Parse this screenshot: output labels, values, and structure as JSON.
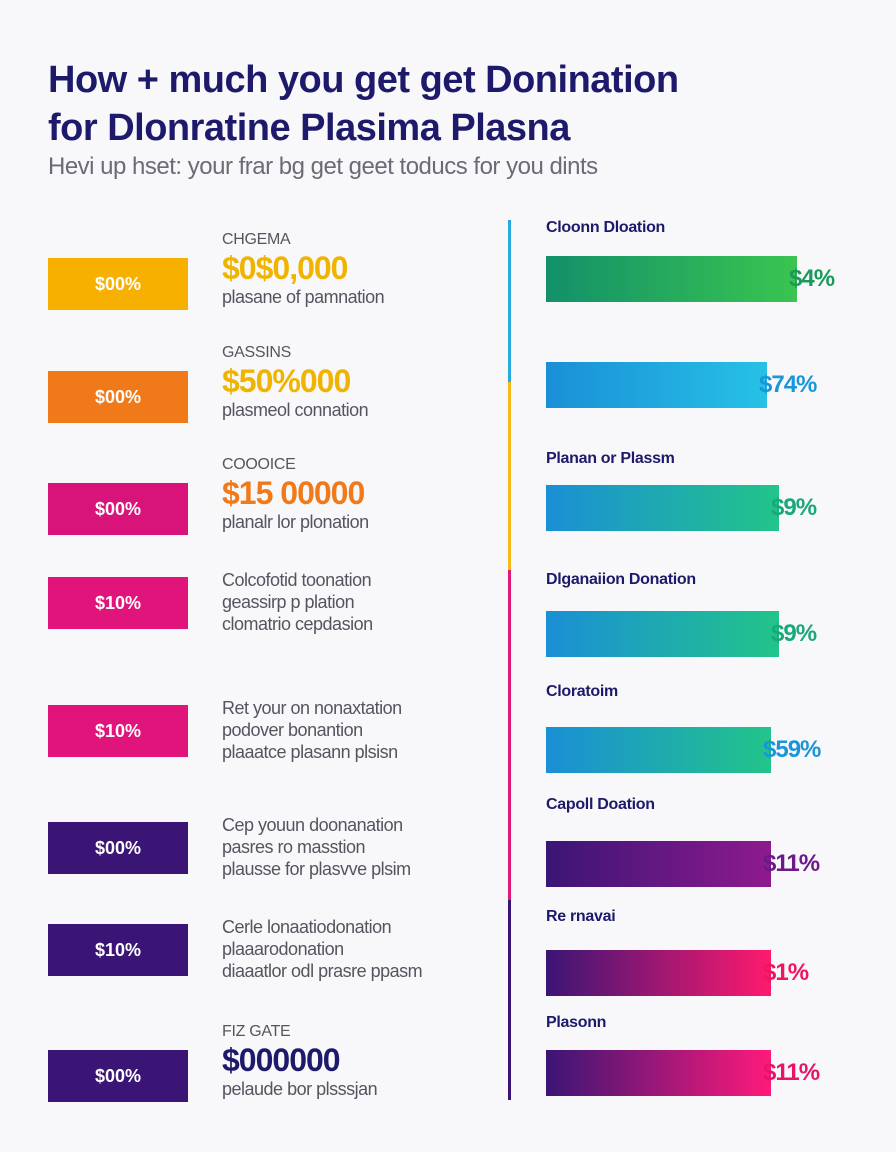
{
  "title_lines": [
    "How + much you get get Donination",
    "for Dlonratine Plasima Plasna"
  ],
  "subtitle": "Hevi up hset: your frar bg get geet toducs for you dints",
  "left_items": [
    {
      "badge": "$00%",
      "badge_color": "#f8b000",
      "category": "CHGEMA",
      "amount": "$0$0,000",
      "amount_color": "#f0b400",
      "lines": [
        "plasane of pamnation"
      ]
    },
    {
      "badge": "$00%",
      "badge_color": "#f07a1a",
      "category": "GASSINS",
      "amount": "$50%000",
      "amount_color": "#f0b400",
      "lines": [
        "plasmeol connation"
      ]
    },
    {
      "badge": "$00%",
      "badge_color": "#d8147a",
      "category": "COOOICE",
      "amount": "$15 00000",
      "amount_color": "#f07a1a",
      "lines": [
        "planalr lor plonation"
      ]
    },
    {
      "badge": "$10%",
      "badge_color": "#e0147a",
      "category": "",
      "amount": "",
      "amount_color": "#f0b400",
      "lines": [
        "Colcofotid toonation",
        "geassirp p plation",
        "clomatrio cepdasion"
      ]
    },
    {
      "badge": "$10%",
      "badge_color": "#e0147a",
      "category": "",
      "amount": "",
      "amount_color": "#f0b400",
      "lines": [
        "Ret your on nonaxtation",
        "podover bonantion",
        "plaaatce plasann plsisn"
      ]
    },
    {
      "badge": "$00%",
      "badge_color": "#3a1575",
      "category": "",
      "amount": "",
      "amount_color": "#f0b400",
      "lines": [
        "Cep youun doonanation",
        "pasres ro masstion",
        "plausse for plasvve plsim"
      ]
    },
    {
      "badge": "$10%",
      "badge_color": "#3a1575",
      "category": "",
      "amount": "",
      "amount_color": "#f0b400",
      "lines": [
        "Cerle lonaatiodonation",
        "plaaarodonation",
        "diaaatlor odl prasre ppasm"
      ]
    },
    {
      "badge": "$00%",
      "badge_color": "#3a1575",
      "category": "FIZ GATE",
      "amount": "$000000",
      "amount_color": "#1d1a6b",
      "lines": [
        "pelaude bor plsssjan"
      ]
    }
  ],
  "right_items": [
    {
      "label": "Cloonn Dloation",
      "value": "$4%",
      "value_color": "#1a9a5a",
      "color_from": "#13906a",
      "color_to": "#3ac450",
      "fill": 0.67
    },
    {
      "label": "",
      "value": "$74%",
      "value_color": "#1a96d8",
      "color_from": "#1a8fd6",
      "color_to": "#26c1e6",
      "fill": 0.59
    },
    {
      "label": "Planan or Plassm",
      "value": "$9%",
      "value_color": "#18a87a",
      "color_from": "#1a8fd6",
      "color_to": "#22c489",
      "fill": 0.62
    },
    {
      "label": "Dlganaiion Donation",
      "value": "$9%",
      "value_color": "#18a87a",
      "color_from": "#1a8fd6",
      "color_to": "#22c489",
      "fill": 0.62
    },
    {
      "label": "Cloratoim",
      "value": "$59%",
      "value_color": "#1a96d8",
      "color_from": "#1a8fd6",
      "color_to": "#22c489",
      "fill": 0.6
    },
    {
      "label": "Capoll Doation",
      "value": "$11%",
      "value_color": "#6a1a8a",
      "color_from": "#3a1575",
      "color_to": "#8e1a8e",
      "fill": 0.6
    },
    {
      "label": "Re rnavai",
      "value": "$1%",
      "value_color": "#ee1660",
      "color_from": "#3a1575",
      "color_to": "#ff1a6e",
      "fill": 0.6
    },
    {
      "label": "Plasonn",
      "value": "$11%",
      "value_color": "#e8146a",
      "color_from": "#3a1575",
      "color_to": "#ff1a7a",
      "fill": 0.6
    }
  ],
  "divider_colors": [
    "#2aa8e0",
    "#f8b818",
    "#e01a7a",
    "#3a1575"
  ]
}
